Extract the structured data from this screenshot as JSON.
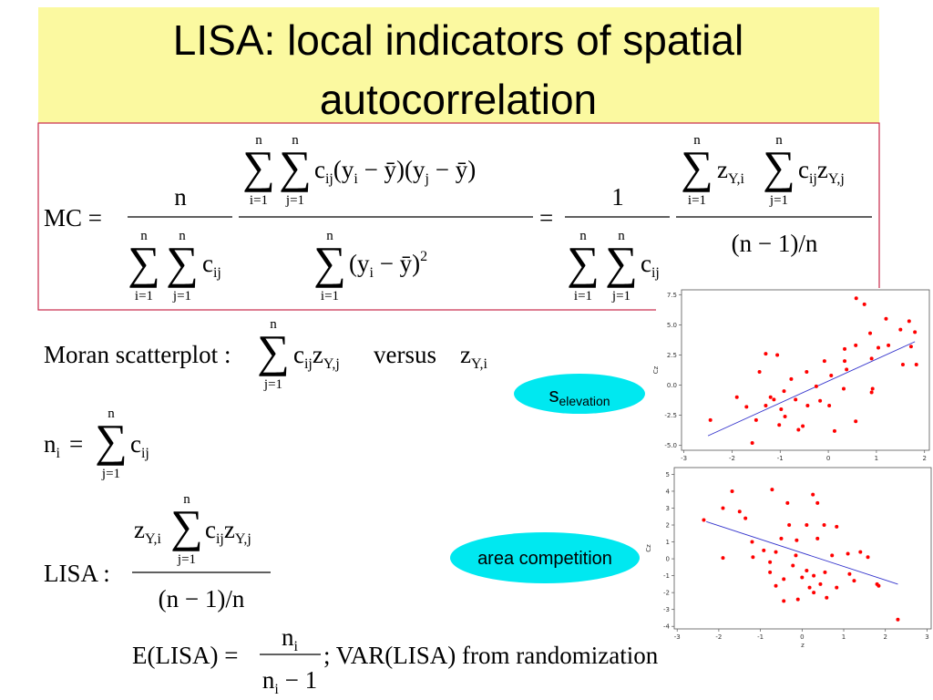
{
  "header": {
    "title_line1": "LISA: local indicators of spatial",
    "title_line2": "autocorrelation"
  },
  "sym": {
    "sum": "∑",
    "n": "n",
    "i1": "i=1",
    "j1": "j=1",
    "c": "c",
    "ij": "ij",
    "z": "z",
    "Yi": "Y,i",
    "Yj": "Y,j",
    "i": "i",
    "j": "j",
    "eq": "=",
    "nm1": "(n − 1)/n"
  },
  "mc": {
    "lhs": "MC =",
    "one": "1",
    "num_a": "(y",
    "num_b": " − ȳ)(y",
    "num_c": " − ȳ)",
    "den_a": "(y",
    "den_b": " − ȳ)",
    "sq": "2"
  },
  "moran": {
    "label": "Moran scatterplot :",
    "versus": "versus"
  },
  "lisa": {
    "label": "LISA :",
    "e_lhs": "E(LISA) =",
    "minus1": " − 1",
    "var": "; VAR(LISA)  from randomization"
  },
  "ovals": {
    "s": "s",
    "elevation": "elevation",
    "area": "area competition"
  },
  "chart_data": [
    {
      "type": "scatter",
      "ylabel": "Cz",
      "color": "#ff0000",
      "x": [
        0.58,
        0.75,
        1.2,
        1.68,
        1.8,
        1.5,
        0.87,
        -1.3,
        -1.06,
        0.34,
        0.57,
        1.04,
        1.25,
        1.72,
        -0.08,
        0.34,
        0.9,
        1.55,
        1.83,
        -1.43,
        -0.45,
        0.06,
        0.38,
        -0.77,
        -0.25,
        0.32,
        0.92,
        -0.92,
        -1.9,
        -1.13,
        -0.68,
        -0.17,
        -1.3,
        -0.98,
        -0.43,
        0.02,
        0.9,
        -1.7,
        -0.9,
        -1.5,
        -1.02,
        -0.53,
        0.13,
        0.57,
        -2.45,
        -1.58,
        -0.62,
        -1.2
      ],
      "values": [
        7.2,
        6.7,
        5.5,
        5.3,
        4.4,
        4.6,
        4.3,
        2.6,
        2.5,
        3.0,
        3.3,
        3.1,
        3.3,
        3.2,
        2.0,
        2.0,
        2.2,
        1.7,
        1.7,
        1.1,
        1.1,
        0.8,
        1.3,
        0.5,
        -0.1,
        -0.3,
        -0.3,
        -0.5,
        -1.0,
        -1.2,
        -1.2,
        -1.3,
        -1.7,
        -2.0,
        -1.7,
        -1.7,
        -0.6,
        -1.8,
        -2.6,
        -2.9,
        -3.3,
        -3.4,
        -3.8,
        -3.0,
        -2.9,
        -4.8,
        -3.7,
        -1.0
      ],
      "fit": {
        "x": [
          -2.5,
          1.8
        ],
        "values": [
          -4.2,
          3.6
        ],
        "color": "#3333cc"
      },
      "xlim": [
        -3.05,
        2.1
      ],
      "ylim": [
        -5.4,
        7.9
      ],
      "xticks": [
        -3,
        -2,
        -1,
        0,
        1,
        2
      ],
      "yticks": [
        7.5,
        {
          "value": 5,
          "label": "5.0"
        },
        2.5,
        {
          "value": 0,
          "label": "0.0"
        },
        -2.5,
        {
          "value": -5,
          "label": "-5.0"
        }
      ]
    },
    {
      "type": "scatter",
      "ylabel": "Cz",
      "xlabel": "z",
      "color": "#ff0000",
      "x": [
        -2.36,
        -1.68,
        -1.9,
        -1.5,
        -1.36,
        -0.72,
        -0.35,
        0.26,
        0.37,
        -0.31,
        0.11,
        0.53,
        0.83,
        -0.5,
        -0.13,
        0.37,
        -1.2,
        -0.92,
        -0.63,
        -0.15,
        0.72,
        1.1,
        1.4,
        1.58,
        -1.9,
        -1.18,
        -0.77,
        -0.22,
        0.11,
        0.55,
        1.14,
        -0.77,
        -0.44,
        0.0,
        0.44,
        0.83,
        1.25,
        1.8,
        -0.63,
        0.18,
        0.28,
        -0.44,
        -0.1,
        0.59,
        1.84,
        2.3,
        0.28
      ],
      "values": [
        2.3,
        4.0,
        3.0,
        2.8,
        2.4,
        4.1,
        3.3,
        3.8,
        3.3,
        2.0,
        2.0,
        2.0,
        1.9,
        1.2,
        1.1,
        1.2,
        1.0,
        0.5,
        0.4,
        0.2,
        0.2,
        0.3,
        0.4,
        0.1,
        0.05,
        0.1,
        -0.2,
        -0.4,
        -0.7,
        -0.8,
        -0.9,
        -0.8,
        -1.2,
        -1.1,
        -1.5,
        -1.7,
        -1.3,
        -1.5,
        -1.6,
        -1.7,
        -2.0,
        -2.5,
        -2.4,
        -2.3,
        -1.6,
        -3.6,
        -1.0
      ],
      "fit": {
        "x": [
          -2.3,
          2.3
        ],
        "values": [
          2.2,
          -1.5
        ],
        "color": "#3333cc"
      },
      "xlim": [
        -3.07,
        3.1
      ],
      "ylim": [
        -4.15,
        5.4
      ],
      "xticks": [
        -3,
        -2,
        -1,
        0,
        1,
        2,
        3
      ],
      "yticks": [
        -4,
        -3,
        -2,
        -1,
        0,
        1,
        2,
        3,
        4,
        5
      ]
    }
  ]
}
